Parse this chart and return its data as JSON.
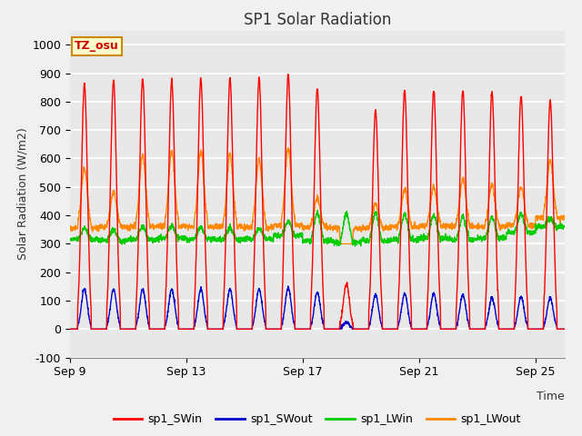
{
  "title": "SP1 Solar Radiation",
  "ylabel": "Solar Radiation (W/m2)",
  "xlabel": "Time",
  "ylim": [
    -100,
    1050
  ],
  "yticks": [
    -100,
    0,
    100,
    200,
    300,
    400,
    500,
    600,
    700,
    800,
    900,
    1000
  ],
  "xtick_labels": [
    "Sep 9",
    "Sep 13",
    "Sep 17",
    "Sep 21",
    "Sep 25"
  ],
  "bg_color": "#e8e8e8",
  "grid_color": "#ffffff",
  "fig_bg_color": "#f0f0f0",
  "colors": {
    "sp1_SWin": "#ff0000",
    "sp1_SWout": "#0000cc",
    "sp1_LWin": "#00cc00",
    "sp1_LWout": "#ff8800"
  },
  "annotation_text": "TZ_osu",
  "annotation_bg": "#ffffcc",
  "annotation_border": "#cc8800",
  "n_days": 17
}
